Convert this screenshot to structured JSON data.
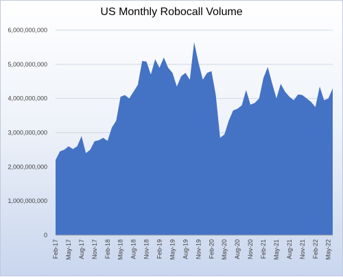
{
  "chart_data": {
    "type": "area",
    "title": "US Monthly Robocall Volume",
    "xlabel": "",
    "ylabel": "",
    "ylim": [
      0,
      6000000000
    ],
    "yticks": [
      0,
      1000000000,
      2000000000,
      3000000000,
      4000000000,
      5000000000,
      6000000000
    ],
    "ytick_labels": [
      "0",
      "1,000,000,000",
      "2,000,000,000",
      "3,000,000,000",
      "4,000,000,000",
      "5,000,000,000",
      "6,000,000,000"
    ],
    "grid": true,
    "legend": "none",
    "color": "#4472c4",
    "x_tick_labels": [
      "Feb-17",
      "May-17",
      "Aug-17",
      "Nov-17",
      "Feb-18",
      "May-18",
      "Aug-18",
      "Nov-18",
      "Feb-19",
      "May-19",
      "Aug-19",
      "Nov-19",
      "Feb-20",
      "May-20",
      "Aug-20",
      "Nov-20",
      "Feb-21",
      "May-21",
      "Aug-21",
      "Nov-21",
      "Feb-22",
      "May-22"
    ],
    "x_tick_interval_months": 3,
    "months": [
      "Feb-17",
      "Mar-17",
      "Apr-17",
      "May-17",
      "Jun-17",
      "Jul-17",
      "Aug-17",
      "Sep-17",
      "Oct-17",
      "Nov-17",
      "Dec-17",
      "Jan-18",
      "Feb-18",
      "Mar-18",
      "Apr-18",
      "May-18",
      "Jun-18",
      "Jul-18",
      "Aug-18",
      "Sep-18",
      "Oct-18",
      "Nov-18",
      "Dec-18",
      "Jan-19",
      "Feb-19",
      "Mar-19",
      "Apr-19",
      "May-19",
      "Jun-19",
      "Jul-19",
      "Aug-19",
      "Sep-19",
      "Oct-19",
      "Nov-19",
      "Dec-19",
      "Jan-20",
      "Feb-20",
      "Mar-20",
      "Apr-20",
      "May-20",
      "Jun-20",
      "Jul-20",
      "Aug-20",
      "Sep-20",
      "Oct-20",
      "Nov-20",
      "Dec-20",
      "Jan-21",
      "Feb-21",
      "Mar-21",
      "Apr-21",
      "May-21",
      "Jun-21",
      "Jul-21",
      "Aug-21",
      "Sep-21",
      "Oct-21",
      "Nov-21",
      "Dec-21",
      "Jan-22",
      "Feb-22",
      "Mar-22",
      "Apr-22",
      "May-22",
      "Jun-22"
    ],
    "values": [
      2200000000,
      2450000000,
      2500000000,
      2600000000,
      2520000000,
      2600000000,
      2900000000,
      2400000000,
      2500000000,
      2750000000,
      2780000000,
      2850000000,
      2760000000,
      3150000000,
      3350000000,
      4050000000,
      4100000000,
      4000000000,
      4200000000,
      4400000000,
      5100000000,
      5080000000,
      4700000000,
      5150000000,
      4900000000,
      5200000000,
      4900000000,
      4750000000,
      4350000000,
      4650000000,
      4750000000,
      4550000000,
      5650000000,
      5050000000,
      4550000000,
      4750000000,
      4800000000,
      4100000000,
      2850000000,
      2950000000,
      3350000000,
      3650000000,
      3700000000,
      3800000000,
      4250000000,
      3820000000,
      3870000000,
      4000000000,
      4600000000,
      4920000000,
      4450000000,
      4000000000,
      4430000000,
      4200000000,
      4050000000,
      3950000000,
      4120000000,
      4100000000,
      4000000000,
      3900000000,
      3750000000,
      4350000000,
      3950000000,
      4000000000,
      4300000000
    ]
  }
}
